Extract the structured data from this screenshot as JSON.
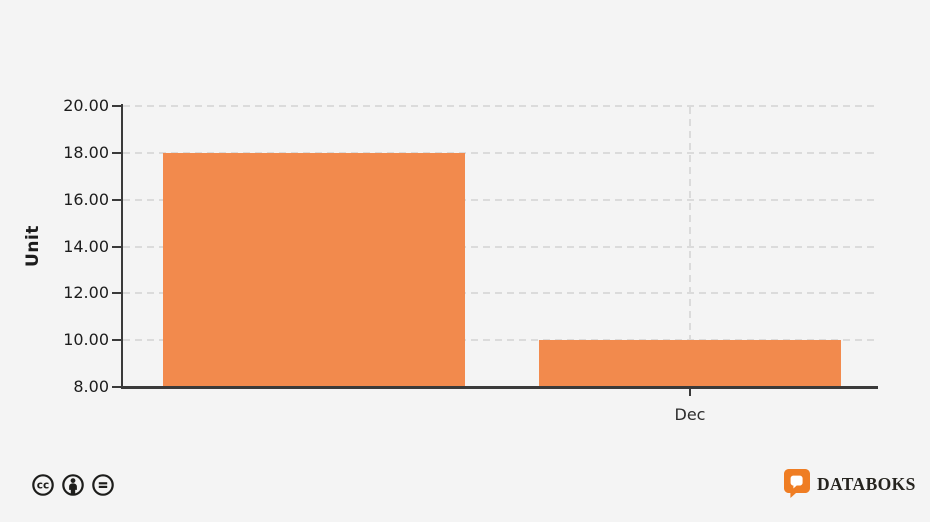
{
  "chart_data": {
    "type": "bar",
    "categories": [
      "",
      "Dec"
    ],
    "values": [
      18,
      10
    ],
    "title": "",
    "xlabel": "",
    "ylabel": "Unit",
    "ylim": [
      8,
      20
    ],
    "ytick_step": 2,
    "ytick_labels": [
      "20.00",
      "18.00",
      "16.00",
      "14.00",
      "12.00",
      "10.00",
      "8.00"
    ],
    "grid": true,
    "legend_position": "none",
    "bar_color": "#F28A4D"
  },
  "footer": {
    "brand": "DATABOKS",
    "license_icons": [
      "cc-icon",
      "attribution-icon",
      "no-derivatives-icon"
    ]
  },
  "colors": {
    "background": "#F4F4F4",
    "bar": "#F28A4D",
    "gridline": "#DBDBDB",
    "axis": "#3A3A3A",
    "tick_text": "#1C1C1C",
    "icon_dark": "#1D1D1B",
    "logo_orange": "#EF7D23"
  }
}
